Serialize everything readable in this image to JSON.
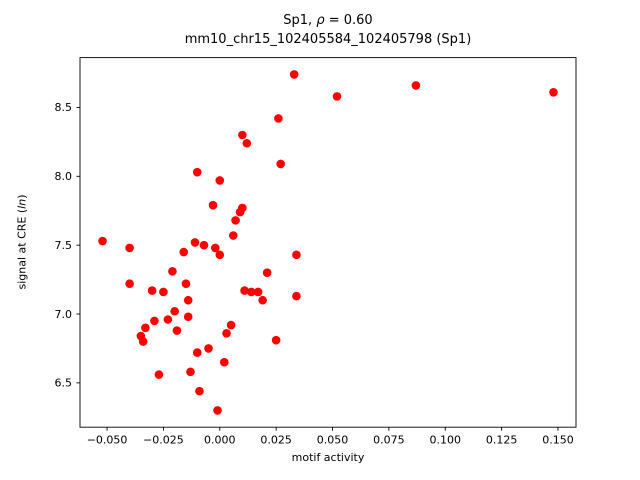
{
  "figure": {
    "title": {
      "part1": "Sp1, ",
      "rho": "ρ",
      "part3": " = 0.60"
    },
    "subtitle": "mm10_chr15_102405584_102405798 (Sp1)",
    "xlabel": "motif activity",
    "ylabel": {
      "part1": "signal at CRE (",
      "ln": "ln",
      "part3": ")"
    }
  },
  "chart_data": {
    "type": "scatter",
    "title": "Sp1, ρ = 0.60",
    "subtitle": "mm10_chr15_102405584_102405798 (Sp1)",
    "correlation_rho": 0.6,
    "xlabel": "motif activity",
    "ylabel": "signal at CRE (ln)",
    "xlim": [
      -0.062,
      0.158
    ],
    "ylim": [
      6.178,
      8.862
    ],
    "xticks": [
      "−0.050",
      "−0.025",
      "0.000",
      "0.025",
      "0.050",
      "0.075",
      "0.100",
      "0.125",
      "0.150"
    ],
    "xtick_values": [
      -0.05,
      -0.025,
      0.0,
      0.025,
      0.05,
      0.075,
      0.1,
      0.125,
      0.15
    ],
    "yticks": [
      "6.5",
      "7.0",
      "7.5",
      "8.0",
      "8.5"
    ],
    "ytick_values": [
      6.5,
      7.0,
      7.5,
      8.0,
      8.5
    ],
    "grid": false,
    "legend": false,
    "marker_color": "#ff0000",
    "points": [
      [
        -0.052,
        7.53
      ],
      [
        -0.04,
        7.48
      ],
      [
        -0.04,
        7.22
      ],
      [
        -0.035,
        6.84
      ],
      [
        -0.034,
        6.8
      ],
      [
        -0.033,
        6.9
      ],
      [
        -0.03,
        7.17
      ],
      [
        -0.029,
        6.95
      ],
      [
        -0.027,
        6.56
      ],
      [
        -0.025,
        7.16
      ],
      [
        -0.023,
        6.96
      ],
      [
        -0.021,
        7.31
      ],
      [
        -0.02,
        7.02
      ],
      [
        -0.019,
        6.88
      ],
      [
        -0.016,
        7.45
      ],
      [
        -0.015,
        7.22
      ],
      [
        -0.014,
        7.1
      ],
      [
        -0.014,
        6.98
      ],
      [
        -0.013,
        6.58
      ],
      [
        -0.011,
        7.52
      ],
      [
        -0.01,
        8.03
      ],
      [
        -0.01,
        6.72
      ],
      [
        -0.009,
        6.44
      ],
      [
        -0.007,
        7.5
      ],
      [
        -0.005,
        6.75
      ],
      [
        -0.003,
        7.79
      ],
      [
        -0.002,
        7.48
      ],
      [
        0.0,
        7.97
      ],
      [
        0.0,
        7.43
      ],
      [
        -0.001,
        6.3
      ],
      [
        0.002,
        6.65
      ],
      [
        0.003,
        6.86
      ],
      [
        0.005,
        6.92
      ],
      [
        0.006,
        7.57
      ],
      [
        0.007,
        7.68
      ],
      [
        0.009,
        7.74
      ],
      [
        0.01,
        8.3
      ],
      [
        0.01,
        7.77
      ],
      [
        0.011,
        7.17
      ],
      [
        0.012,
        8.24
      ],
      [
        0.014,
        7.16
      ],
      [
        0.017,
        7.16
      ],
      [
        0.019,
        7.1
      ],
      [
        0.021,
        7.3
      ],
      [
        0.025,
        6.81
      ],
      [
        0.026,
        8.42
      ],
      [
        0.027,
        8.09
      ],
      [
        0.033,
        8.74
      ],
      [
        0.034,
        7.43
      ],
      [
        0.034,
        7.13
      ],
      [
        0.052,
        8.58
      ],
      [
        0.087,
        8.66
      ],
      [
        0.148,
        8.61
      ]
    ]
  }
}
